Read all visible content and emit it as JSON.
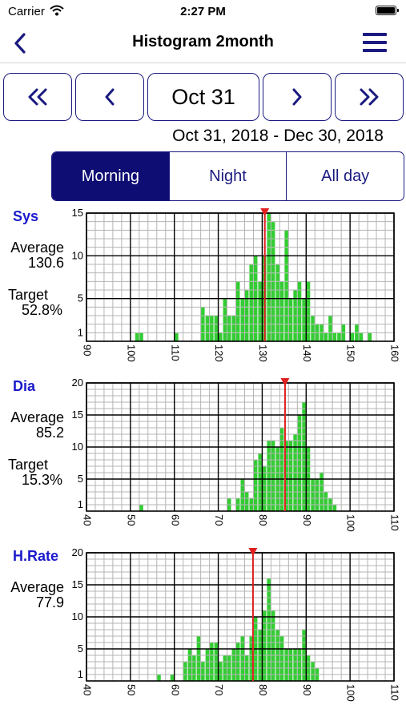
{
  "status_bar": {
    "carrier": "Carrier",
    "time": "2:27 PM"
  },
  "nav": {
    "title": "Histogram  2month",
    "back_icon": "chevron-left-icon",
    "menu_icon": "hamburger-menu-icon"
  },
  "date_nav": {
    "current": "Oct 31",
    "range": "Oct 31, 2018 - Dec 30, 2018"
  },
  "period_tabs": {
    "items": [
      "Morning",
      "Night",
      "All day"
    ],
    "selected": "Morning"
  },
  "colors": {
    "accent": "#1a1a80",
    "selected": "#0d0d73",
    "bar": "#33cc33",
    "marker": "#e02020",
    "label": "#1a1acc"
  },
  "panels": [
    {
      "label": "Sys",
      "average_label": "Average",
      "average_value": "130.6",
      "target_label": "Target",
      "target_value": "52.8%",
      "chart_data": {
        "type": "bar",
        "xlim": [
          90,
          160
        ],
        "ylim": [
          0,
          15
        ],
        "x_ticks": [
          90,
          100,
          110,
          120,
          130,
          140,
          150,
          160
        ],
        "y_ticks": [
          1,
          5,
          10,
          15
        ],
        "bin_width": 1,
        "average_marker": 130.6,
        "bins_x": [
          101,
          102,
          110,
          116,
          117,
          118,
          119,
          120,
          121,
          122,
          123,
          124,
          125,
          126,
          127,
          128,
          129,
          130,
          131,
          132,
          133,
          134,
          135,
          136,
          137,
          138,
          139,
          140,
          141,
          142,
          143,
          144,
          145,
          146,
          147,
          148,
          150,
          151,
          152,
          154
        ],
        "bins_y": [
          1,
          1,
          1,
          4,
          3,
          3,
          3,
          1,
          5,
          3,
          3,
          7,
          5,
          6,
          9,
          10,
          7,
          10,
          15,
          14,
          9,
          7,
          13,
          5,
          6,
          7,
          5,
          7,
          3,
          2,
          2,
          1,
          3,
          1,
          1,
          2,
          1,
          2,
          1,
          1
        ]
      }
    },
    {
      "label": "Dia",
      "average_label": "Average",
      "average_value": "85.2",
      "target_label": "Target",
      "target_value": "15.3%",
      "chart_data": {
        "type": "bar",
        "xlim": [
          40,
          110
        ],
        "ylim": [
          0,
          20
        ],
        "x_ticks": [
          40,
          50,
          60,
          70,
          80,
          90,
          100,
          110
        ],
        "y_ticks": [
          1,
          5,
          10,
          15,
          20
        ],
        "bin_width": 1,
        "average_marker": 85.2,
        "bins_x": [
          52,
          72,
          74,
          75,
          76,
          77,
          78,
          79,
          80,
          81,
          82,
          83,
          84,
          85,
          86,
          87,
          88,
          89,
          90,
          91,
          92,
          93,
          94,
          95,
          96
        ],
        "bins_y": [
          1,
          2,
          2,
          5,
          3,
          2,
          8,
          9,
          7,
          11,
          11,
          10,
          13,
          11,
          11,
          12,
          15,
          17,
          10,
          5,
          5,
          6,
          3,
          2,
          1
        ]
      }
    },
    {
      "label": "H.Rate",
      "average_label": "Average",
      "average_value": "77.9",
      "chart_data": {
        "type": "bar",
        "xlim": [
          40,
          110
        ],
        "ylim": [
          0,
          20
        ],
        "x_ticks": [
          40,
          50,
          60,
          70,
          80,
          90,
          100,
          110
        ],
        "y_ticks": [
          1,
          5,
          10,
          15,
          20
        ],
        "bin_width": 1,
        "average_marker": 77.9,
        "bins_x": [
          56,
          59,
          62,
          63,
          64,
          65,
          66,
          67,
          68,
          69,
          70,
          71,
          72,
          73,
          74,
          75,
          76,
          77,
          78,
          79,
          80,
          81,
          82,
          83,
          84,
          85,
          86,
          87,
          88,
          89,
          90,
          91,
          92
        ],
        "bins_y": [
          1,
          1,
          3,
          5,
          4,
          7,
          3,
          5,
          6,
          6,
          3,
          4,
          4,
          5,
          6,
          7,
          4,
          7,
          10,
          8,
          11,
          16,
          11,
          8,
          7,
          5,
          5,
          5,
          5,
          8,
          4,
          3,
          2
        ]
      }
    }
  ]
}
